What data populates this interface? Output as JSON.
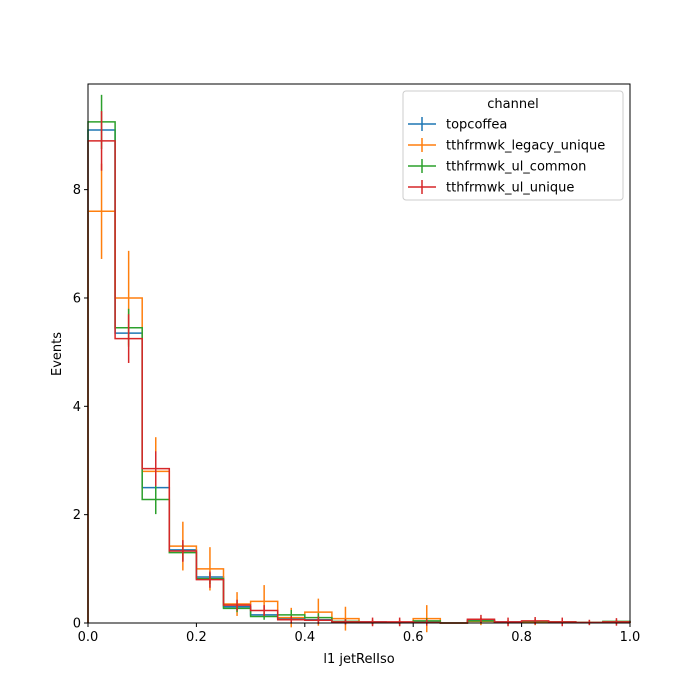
{
  "chart_data": {
    "type": "histogram-step",
    "xlabel": "l1 jetRelIso",
    "ylabel": "Events",
    "xlim": [
      0.0,
      1.0
    ],
    "ylim": [
      0.0,
      9.95
    ],
    "x_ticks": [
      "0.0",
      "0.2",
      "0.4",
      "0.6",
      "0.8",
      "1.0"
    ],
    "y_ticks": [
      "0",
      "2",
      "4",
      "6",
      "8"
    ],
    "grid": false,
    "legend": {
      "title": "channel",
      "placement": "top-right"
    },
    "bin_edges": [
      0.0,
      0.05,
      0.1,
      0.15,
      0.2,
      0.25,
      0.3,
      0.35,
      0.4,
      0.45,
      0.5,
      0.55,
      0.6,
      0.65,
      0.7,
      0.75,
      0.8,
      0.85,
      0.9,
      0.95,
      1.0
    ],
    "series": [
      {
        "name": "topcoffea",
        "color": "#1f77b4",
        "values": [
          9.1,
          5.35,
          2.5,
          1.35,
          0.85,
          0.3,
          0.15,
          0.08,
          0.06,
          0.02,
          0.02,
          0.01,
          0.02,
          0.0,
          0.05,
          0.02,
          0.03,
          0.02,
          0.01,
          0.02
        ],
        "errors": [
          0.0,
          0.0,
          0.0,
          0.0,
          0.0,
          0.0,
          0.0,
          0.0,
          0.0,
          0.0,
          0.0,
          0.0,
          0.0,
          0.0,
          0.0,
          0.0,
          0.0,
          0.0,
          0.0,
          0.0
        ]
      },
      {
        "name": "tthfrmwk_legacy_unique",
        "color": "#ff7f0e",
        "values": [
          7.6,
          6.0,
          2.8,
          1.42,
          1.0,
          0.35,
          0.4,
          0.1,
          0.2,
          0.08,
          0.01,
          0.01,
          0.08,
          0.0,
          0.03,
          0.01,
          0.01,
          0.01,
          0.01,
          0.01
        ],
        "errors": [
          0.88,
          0.87,
          0.63,
          0.45,
          0.4,
          0.22,
          0.3,
          0.18,
          0.25,
          0.22,
          0.05,
          0.05,
          0.25,
          0.0,
          0.07,
          0.04,
          0.05,
          0.05,
          0.04,
          0.03
        ]
      },
      {
        "name": "tthfrmwk_ul_common",
        "color": "#2ca02c",
        "values": [
          9.25,
          5.45,
          2.28,
          1.3,
          0.82,
          0.27,
          0.12,
          0.15,
          0.1,
          0.03,
          0.01,
          0.01,
          0.04,
          0.0,
          0.04,
          0.01,
          0.03,
          0.02,
          0.01,
          0.03
        ],
        "errors": [
          0.5,
          0.35,
          0.27,
          0.15,
          0.1,
          0.07,
          0.06,
          0.09,
          0.08,
          0.04,
          0.03,
          0.03,
          0.05,
          0.0,
          0.05,
          0.02,
          0.04,
          0.03,
          0.02,
          0.03
        ]
      },
      {
        "name": "tthfrmwk_ul_unique",
        "color": "#d62728",
        "values": [
          8.9,
          5.25,
          2.85,
          1.33,
          0.8,
          0.33,
          0.23,
          0.06,
          0.05,
          0.02,
          0.02,
          0.02,
          0.01,
          0.0,
          0.07,
          0.02,
          0.04,
          0.02,
          0.01,
          0.02
        ],
        "errors": [
          0.55,
          0.45,
          0.32,
          0.2,
          0.15,
          0.1,
          0.1,
          0.07,
          0.07,
          0.05,
          0.08,
          0.08,
          0.06,
          0.0,
          0.08,
          0.08,
          0.07,
          0.08,
          0.05,
          0.07
        ]
      }
    ]
  }
}
